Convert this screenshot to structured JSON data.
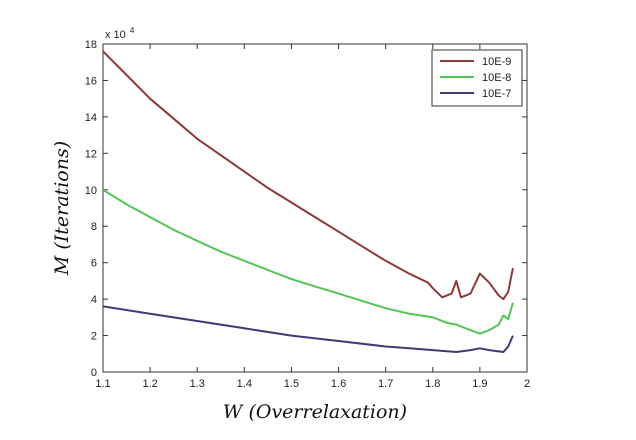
{
  "chart_data": {
    "type": "line",
    "xlabel": "W (Overrelaxation)",
    "ylabel": "M (Iterations)",
    "y_multiplier": "x 10",
    "y_multiplier_exp": "4",
    "xlim": [
      1.1,
      2.0
    ],
    "ylim": [
      0,
      18
    ],
    "x_ticks": [
      "1.1",
      "1.2",
      "1.3",
      "1.4",
      "1.5",
      "1.6",
      "1.7",
      "1.8",
      "1.9",
      "2"
    ],
    "y_ticks": [
      "0",
      "2",
      "4",
      "6",
      "8",
      "10",
      "12",
      "14",
      "16",
      "18"
    ],
    "grid": false,
    "legend_position": "top-right",
    "series": [
      {
        "name": "10E-9",
        "color": "#8b3a3a",
        "points": [
          [
            1.1,
            17.6
          ],
          [
            1.15,
            16.3
          ],
          [
            1.2,
            15.0
          ],
          [
            1.25,
            13.9
          ],
          [
            1.3,
            12.8
          ],
          [
            1.35,
            11.9
          ],
          [
            1.4,
            11.0
          ],
          [
            1.45,
            10.1
          ],
          [
            1.5,
            9.3
          ],
          [
            1.55,
            8.5
          ],
          [
            1.6,
            7.7
          ],
          [
            1.65,
            6.9
          ],
          [
            1.7,
            6.1
          ],
          [
            1.75,
            5.4
          ],
          [
            1.79,
            4.9
          ],
          [
            1.8,
            4.6
          ],
          [
            1.82,
            4.1
          ],
          [
            1.84,
            4.3
          ],
          [
            1.85,
            5.0
          ],
          [
            1.86,
            4.1
          ],
          [
            1.88,
            4.3
          ],
          [
            1.9,
            5.4
          ],
          [
            1.92,
            4.9
          ],
          [
            1.94,
            4.2
          ],
          [
            1.95,
            4.0
          ],
          [
            1.96,
            4.4
          ],
          [
            1.97,
            5.7
          ]
        ]
      },
      {
        "name": "10E-8",
        "color": "#55c455",
        "points": [
          [
            1.1,
            10.0
          ],
          [
            1.15,
            9.2
          ],
          [
            1.2,
            8.5
          ],
          [
            1.25,
            7.8
          ],
          [
            1.3,
            7.2
          ],
          [
            1.35,
            6.6
          ],
          [
            1.4,
            6.1
          ],
          [
            1.45,
            5.6
          ],
          [
            1.5,
            5.1
          ],
          [
            1.55,
            4.7
          ],
          [
            1.6,
            4.3
          ],
          [
            1.65,
            3.9
          ],
          [
            1.7,
            3.5
          ],
          [
            1.75,
            3.2
          ],
          [
            1.8,
            3.0
          ],
          [
            1.83,
            2.7
          ],
          [
            1.85,
            2.6
          ],
          [
            1.87,
            2.4
          ],
          [
            1.9,
            2.1
          ],
          [
            1.92,
            2.3
          ],
          [
            1.94,
            2.6
          ],
          [
            1.95,
            3.1
          ],
          [
            1.96,
            2.9
          ],
          [
            1.97,
            3.8
          ]
        ]
      },
      {
        "name": "10E-7",
        "color": "#3e3a78",
        "points": [
          [
            1.1,
            3.6
          ],
          [
            1.2,
            3.2
          ],
          [
            1.3,
            2.8
          ],
          [
            1.4,
            2.4
          ],
          [
            1.5,
            2.0
          ],
          [
            1.6,
            1.7
          ],
          [
            1.7,
            1.4
          ],
          [
            1.75,
            1.3
          ],
          [
            1.8,
            1.2
          ],
          [
            1.85,
            1.1
          ],
          [
            1.88,
            1.2
          ],
          [
            1.9,
            1.3
          ],
          [
            1.92,
            1.2
          ],
          [
            1.95,
            1.1
          ],
          [
            1.96,
            1.4
          ],
          [
            1.97,
            2.0
          ]
        ]
      }
    ]
  }
}
